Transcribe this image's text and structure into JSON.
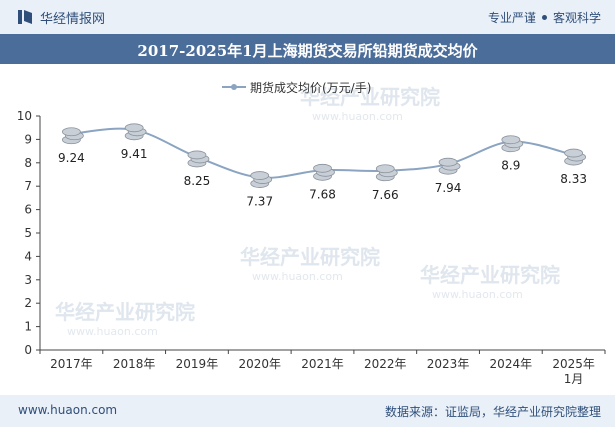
{
  "header": {
    "brand": "华经情报网",
    "tagline_left": "专业严谨",
    "tagline_right": "客观科学"
  },
  "footer": {
    "site": "www.huaon.com",
    "source": "数据来源：证监局，华经产业研究院整理"
  },
  "watermark": "华经产业研究院",
  "watermark_url": "www.huaon.com",
  "colors": {
    "title_bg": "#4b6d9a",
    "header_bg": "#eaf0f8",
    "line": "#8aa4c2",
    "coin": "#c9cfd6"
  },
  "chart_data": {
    "type": "line",
    "title": "2017-2025年1月上海期货交易所铅期货成交均价",
    "legend": "期货成交均价(万元/手)",
    "legend_position": "top-center",
    "categories": [
      "2017年",
      "2018年",
      "2019年",
      "2020年",
      "2021年",
      "2022年",
      "2023年",
      "2024年",
      "2025年\n1月"
    ],
    "series": [
      {
        "name": "期货成交均价(万元/手)",
        "values": [
          9.24,
          9.41,
          8.25,
          7.37,
          7.68,
          7.66,
          7.94,
          8.9,
          8.33
        ]
      }
    ],
    "data_labels": [
      "9.24",
      "9.41",
      "8.25",
      "7.37",
      "7.68",
      "7.66",
      "7.94",
      "8.9",
      "8.33"
    ],
    "ylim": [
      0,
      10
    ],
    "yticks": [
      0,
      1,
      2,
      3,
      4,
      5,
      6,
      7,
      8,
      9,
      10
    ],
    "grid": false
  }
}
